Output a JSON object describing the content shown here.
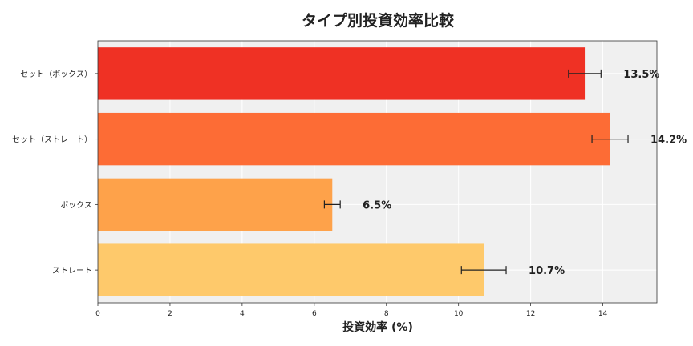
{
  "chart_data": {
    "type": "bar",
    "orientation": "horizontal",
    "title": "タイプ別投資効率比較",
    "xlabel": "投資効率 (%)",
    "ylabel": "",
    "xlim": [
      0,
      15.5
    ],
    "xticks": [
      0,
      2,
      4,
      6,
      8,
      10,
      12,
      14
    ],
    "grid": true,
    "categories": [
      "セット（ボックス）",
      "セット（ストレート）",
      "ボックス",
      "ストレート"
    ],
    "values": [
      13.5,
      14.2,
      6.5,
      10.7
    ],
    "errors": [
      0.45,
      0.5,
      0.22,
      0.62
    ],
    "data_labels": [
      "13.5%",
      "14.2%",
      "6.5%",
      "10.7%"
    ],
    "colors": [
      "#ef3124",
      "#fd6c35",
      "#fea24a",
      "#fec96b"
    ],
    "background": "#f0f0f0"
  }
}
